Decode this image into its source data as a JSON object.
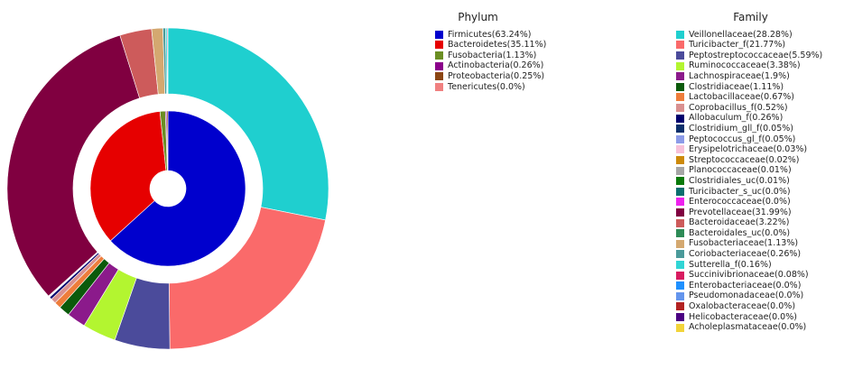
{
  "colors": {
    "background": "#ffffff"
  },
  "chart_data": {
    "type": "pie",
    "title": "",
    "rings": [
      {
        "name": "Phylum",
        "entries": [
          {
            "label": "Firmicutes",
            "legend": "Firmicutes(63.24%)",
            "value": 63.24,
            "color": "#0000cd"
          },
          {
            "label": "Bacteroidetes",
            "legend": "Bacteroidetes(35.11%)",
            "value": 35.11,
            "color": "#e60000"
          },
          {
            "label": "Fusobacteria",
            "legend": "Fusobacteria(1.13%)",
            "value": 1.13,
            "color": "#6b8e23"
          },
          {
            "label": "Actinobacteria",
            "legend": "Actinobacteria(0.26%)",
            "value": 0.26,
            "color": "#8b008b"
          },
          {
            "label": "Proteobacteria",
            "legend": "Proteobacteria(0.25%)",
            "value": 0.25,
            "color": "#8b4513"
          },
          {
            "label": "Tenericutes",
            "legend": "Tenericutes(0.0%)",
            "value": 0.0,
            "color": "#f08080"
          }
        ]
      },
      {
        "name": "Family",
        "entries": [
          {
            "label": "Veillonellaceae",
            "legend": "Veillonellaceae(28.28%)",
            "value": 28.28,
            "color": "#1fcfcf"
          },
          {
            "label": "Turicibacter_f",
            "legend": "Turicibacter_f(21.77%)",
            "value": 21.77,
            "color": "#fa6a6a"
          },
          {
            "label": "Peptostreptococcaceae",
            "legend": "Peptostreptococcaceae(5.59%)",
            "value": 5.59,
            "color": "#4b4b9b"
          },
          {
            "label": "Ruminococcaceae",
            "legend": "Ruminococcaceae(3.38%)",
            "value": 3.38,
            "color": "#b3f530"
          },
          {
            "label": "Lachnospiraceae",
            "legend": "Lachnospiraceae(1.9%)",
            "value": 1.9,
            "color": "#8b1a8b"
          },
          {
            "label": "Clostridiaceae",
            "legend": "Clostridiaceae(1.11%)",
            "value": 1.11,
            "color": "#0b5a0b"
          },
          {
            "label": "Lactobacillaceae",
            "legend": "Lactobacillaceae(0.67%)",
            "value": 0.67,
            "color": "#ee7d3b"
          },
          {
            "label": "Coprobacillus_f",
            "legend": "Coprobacillus_f(0.52%)",
            "value": 0.52,
            "color": "#d99090"
          },
          {
            "label": "Allobaculum_f",
            "legend": "Allobaculum_f(0.26%)",
            "value": 0.26,
            "color": "#00006e"
          },
          {
            "label": "Clostridium_gll_f",
            "legend": "Clostridium_gll_f(0.05%)",
            "value": 0.05,
            "color": "#0b2f6b"
          },
          {
            "label": "Peptococcus_gl_f",
            "legend": "Peptococcus_gl_f(0.05%)",
            "value": 0.05,
            "color": "#8c9be8"
          },
          {
            "label": "Erysipelotrichaceae",
            "legend": "Erysipelotrichaceae(0.03%)",
            "value": 0.03,
            "color": "#f7c1d9"
          },
          {
            "label": "Streptococcaceae",
            "legend": "Streptococcaceae(0.02%)",
            "value": 0.02,
            "color": "#cd8a0a"
          },
          {
            "label": "Planococcaceae",
            "legend": "Planococcaceae(0.01%)",
            "value": 0.01,
            "color": "#a6a6a6"
          },
          {
            "label": "Clostridiales_uc",
            "legend": "Clostridiales_uc(0.01%)",
            "value": 0.01,
            "color": "#0a7a0a"
          },
          {
            "label": "Turicibacter_s_uc",
            "legend": "Turicibacter_s_uc(0.0%)",
            "value": 0.0,
            "color": "#0b6f6f"
          },
          {
            "label": "Enterococcaceae",
            "legend": "Enterococcaceae(0.0%)",
            "value": 0.0,
            "color": "#ee22ee"
          },
          {
            "label": "Prevotellaceae",
            "legend": "Prevotellaceae(31.99%)",
            "value": 31.99,
            "color": "#800040"
          },
          {
            "label": "Bacteroidaceae",
            "legend": "Bacteroidaceae(3.22%)",
            "value": 3.22,
            "color": "#cd5b5b"
          },
          {
            "label": "Bacteroidales_uc",
            "legend": "Bacteroidales_uc(0.0%)",
            "value": 0.0,
            "color": "#2e8b57"
          },
          {
            "label": "Fusobacteriaceae",
            "legend": "Fusobacteriaceae(1.13%)",
            "value": 1.13,
            "color": "#d4a870"
          },
          {
            "label": "Coriobacteriaceae",
            "legend": "Coriobacteriaceae(0.26%)",
            "value": 0.26,
            "color": "#4a9a9a"
          },
          {
            "label": "Sutterella_f",
            "legend": "Sutterella_f(0.16%)",
            "value": 0.16,
            "color": "#30d5d5"
          },
          {
            "label": "Succinivibrionaceae",
            "legend": "Succinivibrionaceae(0.08%)",
            "value": 0.08,
            "color": "#d81b60"
          },
          {
            "label": "Enterobacteriaceae",
            "legend": "Enterobacteriaceae(0.0%)",
            "value": 0.0,
            "color": "#1e90ff"
          },
          {
            "label": "Pseudomonadaceae",
            "legend": "Pseudomonadaceae(0.0%)",
            "value": 0.0,
            "color": "#6495ed"
          },
          {
            "label": "Oxalobacteraceae",
            "legend": "Oxalobacteraceae(0.0%)",
            "value": 0.0,
            "color": "#b22222"
          },
          {
            "label": "Helicobacteraceae",
            "legend": "Helicobacteraceae(0.0%)",
            "value": 0.0,
            "color": "#4b0082"
          },
          {
            "label": "Acholeplasmataceae",
            "legend": "Acholeplasmataceae(0.0%)",
            "value": 0.0,
            "color": "#f2d43a"
          }
        ]
      }
    ]
  }
}
